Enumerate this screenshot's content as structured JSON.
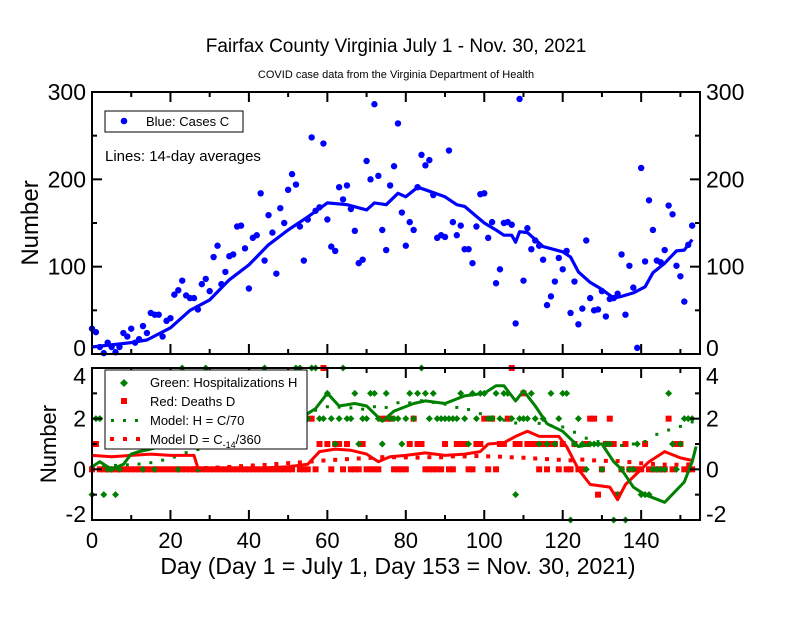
{
  "chart_data": {
    "type": "scatter",
    "title": "Fairfax County Virginia July 1 - Nov. 30, 2021",
    "subtitle": "COVID case data from the Virginia Department of Health",
    "xlabel": "Day (Day 1 = July 1, Day 153 = Nov. 30, 2021)",
    "xlim": [
      0,
      155
    ],
    "x_ticks": [
      0,
      20,
      40,
      60,
      80,
      100,
      120,
      140
    ],
    "grid": false,
    "colors": {
      "cases": "#0000ff",
      "hospitalizations": "#008000",
      "deaths": "#ff0000"
    },
    "top_panel": {
      "ylabel": "Number",
      "ylim": [
        0,
        300
      ],
      "y_ticks": [
        0,
        100,
        200,
        300
      ],
      "legend": {
        "position": "top-left",
        "entries": [
          "Blue: Cases C"
        ]
      },
      "annotation": "Lines: 14-day averages",
      "cases": [
        29,
        25,
        8,
        1,
        13,
        8,
        2,
        8,
        24,
        20,
        29,
        13,
        17,
        32,
        24,
        47,
        45,
        45,
        20,
        38,
        41,
        68,
        73,
        84,
        67,
        64,
        64,
        51,
        80,
        86,
        72,
        111,
        124,
        80,
        94,
        112,
        114,
        146,
        147,
        121,
        75,
        133,
        136,
        184,
        107,
        159,
        139,
        92,
        167,
        150,
        188,
        206,
        194,
        146,
        107,
        154,
        248,
        164,
        168,
        241,
        154,
        123,
        118,
        191,
        177,
        193,
        166,
        141,
        104,
        108,
        221,
        200,
        286,
        204,
        142,
        119,
        193,
        215,
        264,
        162,
        124,
        151,
        142,
        191,
        228,
        216,
        222,
        182,
        133,
        136,
        134,
        233,
        151,
        136,
        147,
        120,
        120,
        104,
        146,
        183,
        184,
        133,
        151,
        81,
        97,
        150,
        151,
        148,
        35,
        292,
        84,
        144,
        120,
        130,
        124,
        108,
        56,
        66,
        83,
        110,
        97,
        118,
        47,
        83,
        34,
        52,
        130,
        64,
        50,
        51,
        72,
        43,
        63,
        64,
        69,
        114,
        45,
        101,
        76,
        7,
        213,
        106,
        176,
        142,
        107,
        105,
        119,
        170,
        160,
        101,
        89,
        60,
        125,
        147
      ],
      "cases_avg": [
        [
          0,
          8
        ],
        [
          10,
          13
        ],
        [
          14,
          16
        ],
        [
          20,
          30
        ],
        [
          25,
          50
        ],
        [
          30,
          62
        ],
        [
          35,
          85
        ],
        [
          40,
          102
        ],
        [
          45,
          125
        ],
        [
          50,
          142
        ],
        [
          55,
          157
        ],
        [
          60,
          173
        ],
        [
          65,
          171
        ],
        [
          70,
          165
        ],
        [
          72,
          173
        ],
        [
          75,
          171
        ],
        [
          78,
          184
        ],
        [
          80,
          180
        ],
        [
          83,
          191
        ],
        [
          85,
          188
        ],
        [
          90,
          180
        ],
        [
          93,
          171
        ],
        [
          95,
          169
        ],
        [
          100,
          150
        ],
        [
          103,
          142
        ],
        [
          105,
          136
        ],
        [
          107,
          136
        ],
        [
          108,
          128
        ],
        [
          109,
          140
        ],
        [
          111,
          139
        ],
        [
          115,
          123
        ],
        [
          120,
          117
        ],
        [
          122,
          111
        ],
        [
          124,
          94
        ],
        [
          127,
          82
        ],
        [
          130,
          74
        ],
        [
          133,
          64
        ],
        [
          135,
          66
        ],
        [
          138,
          70
        ],
        [
          141,
          77
        ],
        [
          143,
          93
        ],
        [
          146,
          104
        ],
        [
          149,
          118
        ],
        [
          151,
          119
        ],
        [
          153,
          131
        ]
      ]
    },
    "bottom_panel": {
      "ylabel": "Number",
      "ylim": [
        -2,
        4
      ],
      "y_ticks": [
        -2,
        0,
        2,
        4
      ],
      "legend": {
        "position": "top-left",
        "entries": [
          "Green: Hospitalizations H",
          "Red: Deaths D",
          "Model: H = C/70",
          "Model D = C"
        ],
        "subscript": "-14",
        "suffix": "/360"
      },
      "hospitalizations": [
        -1,
        2,
        2,
        -1,
        0,
        0,
        -1,
        0,
        1,
        1,
        1,
        2,
        1,
        0,
        1,
        1,
        0,
        1,
        1,
        2,
        1,
        1,
        0,
        4,
        1,
        1,
        2,
        0,
        1,
        4,
        1,
        2,
        1,
        2,
        1,
        2,
        1,
        2,
        3,
        1,
        2,
        1,
        2,
        3,
        4,
        1,
        2,
        3,
        1,
        2,
        2,
        3,
        4,
        4,
        2,
        2,
        4,
        4,
        2,
        2,
        3,
        2,
        1,
        2,
        4,
        2,
        2,
        3,
        1,
        2,
        2,
        3,
        3,
        2,
        1,
        3,
        2,
        2,
        2,
        1,
        2,
        3,
        2,
        3,
        4,
        3,
        2,
        3,
        2,
        2,
        2,
        2,
        2,
        2,
        3,
        2,
        1,
        3,
        2,
        3,
        3,
        2,
        2,
        3,
        2,
        3,
        3,
        2,
        -1,
        2,
        2,
        2,
        3,
        2,
        1,
        2,
        1,
        3,
        1,
        2,
        3,
        3,
        -2,
        1,
        2,
        1,
        0,
        1,
        1,
        1,
        0,
        1,
        1,
        -2,
        -1,
        0,
        -2,
        0,
        0,
        1,
        -1,
        -1,
        -1,
        0,
        0,
        0,
        0,
        3,
        1,
        0,
        1,
        2,
        2,
        2
      ],
      "deaths": [
        0,
        1,
        0,
        0,
        0,
        0,
        0,
        0,
        0,
        0,
        0,
        0,
        0,
        0,
        0,
        0,
        0,
        0,
        0,
        0,
        0,
        0,
        0,
        0,
        0,
        0,
        0,
        0,
        0,
        0,
        0,
        0,
        0,
        0,
        0,
        0,
        0,
        0,
        0,
        0,
        0,
        0,
        0,
        0,
        0,
        0,
        0,
        0,
        0,
        0,
        0,
        0,
        1,
        0,
        0,
        0,
        2,
        0,
        1,
        4,
        1,
        0,
        1,
        1,
        0,
        1,
        0,
        0,
        0,
        1,
        0,
        0,
        0,
        0,
        2,
        2,
        2,
        0,
        0,
        0,
        0,
        1,
        2,
        1,
        1,
        0,
        0,
        0,
        0,
        0,
        1,
        0,
        0,
        1,
        1,
        1,
        0,
        0,
        1,
        1,
        2,
        0,
        2,
        0,
        1,
        1,
        2,
        4,
        1,
        1,
        3,
        1,
        1,
        1,
        0,
        1,
        0,
        1,
        1,
        0,
        1,
        0,
        0,
        1,
        0,
        0,
        1,
        2,
        2,
        -1,
        0,
        1,
        2,
        1,
        -1,
        0,
        1,
        0,
        0,
        0,
        0,
        1,
        0,
        0,
        0,
        0,
        0,
        2,
        0,
        1,
        1,
        0,
        0,
        0
      ],
      "hospitalizations_avg": [
        [
          0,
          0.1
        ],
        [
          2,
          0.3
        ],
        [
          5,
          0.0
        ],
        [
          8,
          0.2
        ],
        [
          10,
          0.6
        ],
        [
          12,
          0.7
        ],
        [
          15,
          0.8
        ],
        [
          20,
          1.0
        ],
        [
          30,
          1.4
        ],
        [
          40,
          1.7
        ],
        [
          50,
          2.0
        ],
        [
          55,
          2.2
        ],
        [
          57,
          2.4
        ],
        [
          60,
          3.0
        ],
        [
          63,
          2.5
        ],
        [
          67,
          2.6
        ],
        [
          70,
          2.5
        ],
        [
          74,
          1.9
        ],
        [
          77,
          2.3
        ],
        [
          82,
          2.6
        ],
        [
          85,
          2.7
        ],
        [
          90,
          2.6
        ],
        [
          95,
          2.9
        ],
        [
          100,
          3.0
        ],
        [
          103,
          3.3
        ],
        [
          105,
          3.3
        ],
        [
          108,
          2.7
        ],
        [
          110,
          3.1
        ],
        [
          113,
          2.5
        ],
        [
          116,
          1.8
        ],
        [
          120,
          1.5
        ],
        [
          124,
          0.9
        ],
        [
          128,
          1.0
        ],
        [
          130,
          1.0
        ],
        [
          133,
          0.3
        ],
        [
          135,
          0.0
        ],
        [
          138,
          -0.7
        ],
        [
          141,
          -1.0
        ],
        [
          146,
          -1.3
        ],
        [
          151,
          -0.5
        ],
        [
          153,
          0.3
        ],
        [
          154,
          0.9
        ]
      ],
      "deaths_avg": [
        [
          0,
          0.55
        ],
        [
          5,
          0.5
        ],
        [
          10,
          0.55
        ],
        [
          15,
          0.6
        ],
        [
          20,
          0.55
        ],
        [
          26,
          0.55
        ],
        [
          27,
          0.05
        ],
        [
          40,
          0.02
        ],
        [
          50,
          0.1
        ],
        [
          55,
          0.2
        ],
        [
          58,
          0.7
        ],
        [
          62,
          0.8
        ],
        [
          66,
          0.75
        ],
        [
          70,
          0.6
        ],
        [
          73,
          0.3
        ],
        [
          76,
          0.5
        ],
        [
          80,
          0.55
        ],
        [
          85,
          0.65
        ],
        [
          90,
          0.55
        ],
        [
          95,
          0.6
        ],
        [
          99,
          0.7
        ],
        [
          101,
          1.0
        ],
        [
          105,
          1.05
        ],
        [
          108,
          1.3
        ],
        [
          111,
          1.5
        ],
        [
          114,
          1.3
        ],
        [
          119,
          1.3
        ],
        [
          121,
          0.9
        ],
        [
          124,
          0.0
        ],
        [
          127,
          -0.6
        ],
        [
          132,
          -0.7
        ],
        [
          134,
          -1.2
        ],
        [
          136,
          -0.6
        ],
        [
          140,
          0.0
        ],
        [
          142,
          0.3
        ],
        [
          146,
          0.7
        ],
        [
          150,
          0.45
        ],
        [
          153,
          0.35
        ]
      ]
    }
  }
}
